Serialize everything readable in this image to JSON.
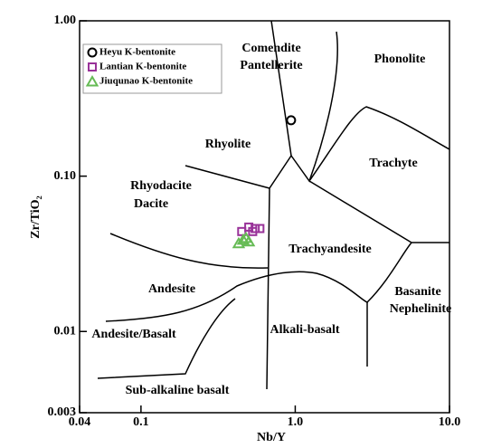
{
  "chart_data": {
    "type": "scatter",
    "xlabel": "Nb/Y",
    "ylabel": "Zr/TiO₂",
    "xscale": "log",
    "yscale": "log",
    "xlim": [
      0.04,
      10.0
    ],
    "ylim": [
      0.003,
      1.0
    ],
    "xticks": [
      0.04,
      0.1,
      {
        "value": 1.0,
        "label": "1.0"
      },
      {
        "value": 10.0,
        "label": "10.0"
      }
    ],
    "yticks": [
      0.003,
      0.01,
      {
        "value": 0.1,
        "label": "0.10"
      },
      {
        "value": 1.0,
        "label": "1.00"
      }
    ],
    "legend": "upper left",
    "annotations": [
      "Comendite",
      "Pantellerite",
      "Phonolite",
      "Rhyolite",
      "Trachyte",
      "Rhyodacite",
      "Dacite",
      "Trachyandesite",
      "Andesite",
      "Basanite",
      "Nephelinite",
      "Andesite/Basalt",
      "Alkali-basalt",
      "Sub-alkaline basalt"
    ],
    "series": [
      {
        "name": "Heyu K-bentonite",
        "color": "#000000",
        "marker": "circle",
        "x": [
          0.94
        ],
        "values": [
          0.229
        ]
      },
      {
        "name": "Lantian K-bentonite",
        "color": "#993399",
        "marker": "square",
        "x": [
          0.45,
          0.5,
          0.55,
          0.59,
          0.53
        ],
        "values": [
          0.044,
          0.047,
          0.046,
          0.046,
          0.044
        ]
      },
      {
        "name": "Jiuqunao K-bentonite",
        "color": "#66bb55",
        "marker": "triangle",
        "x": [
          0.43,
          0.46,
          0.48,
          0.5
        ],
        "values": [
          0.037,
          0.039,
          0.04,
          0.038
        ]
      }
    ]
  }
}
